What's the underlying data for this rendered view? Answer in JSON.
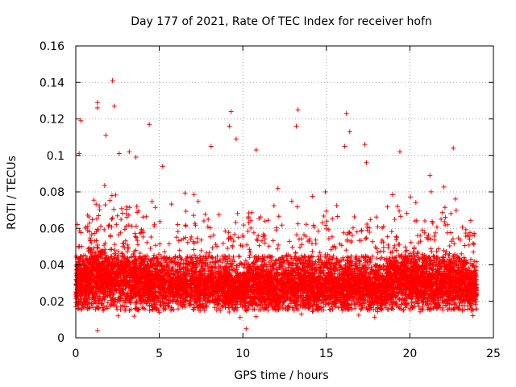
{
  "chart_data": {
    "type": "scatter",
    "title": "Day 177 of 2021, Rate Of TEC Index for receiver hofn",
    "xlabel": "GPS time / hours",
    "ylabel": "ROTI / TECUs",
    "xlim": [
      0,
      25
    ],
    "ylim": [
      0,
      0.16
    ],
    "x_ticks": [
      0,
      5,
      10,
      15,
      20,
      25
    ],
    "x_tick_labels": [
      "0",
      "5",
      "10",
      "15",
      "20",
      "25"
    ],
    "y_ticks": [
      0,
      0.02,
      0.04,
      0.06,
      0.08,
      0.1,
      0.12,
      0.14,
      0.16
    ],
    "y_tick_labels": [
      "0",
      "0.02",
      "0.04",
      "0.06",
      "0.08",
      "0.1",
      "0.12",
      "0.14",
      "0.16"
    ],
    "grid": true,
    "marker": "+",
    "color": "#ff0000",
    "data_extent_x": [
      0,
      24
    ],
    "typical_band": [
      0.015,
      0.045
    ],
    "notable_points": [
      {
        "x": 2.2,
        "y": 0.141
      },
      {
        "x": 1.3,
        "y": 0.129
      },
      {
        "x": 1.3,
        "y": 0.126
      },
      {
        "x": 2.3,
        "y": 0.127
      },
      {
        "x": 13.3,
        "y": 0.125
      },
      {
        "x": 9.3,
        "y": 0.124
      },
      {
        "x": 16.2,
        "y": 0.123
      },
      {
        "x": 0.3,
        "y": 0.119
      },
      {
        "x": 4.4,
        "y": 0.117
      },
      {
        "x": 9.2,
        "y": 0.116
      },
      {
        "x": 13.2,
        "y": 0.116
      },
      {
        "x": 16.4,
        "y": 0.113
      },
      {
        "x": 1.8,
        "y": 0.111
      },
      {
        "x": 17.3,
        "y": 0.106
      },
      {
        "x": 16.1,
        "y": 0.105
      },
      {
        "x": 9.6,
        "y": 0.109
      },
      {
        "x": 22.6,
        "y": 0.104
      },
      {
        "x": 8.1,
        "y": 0.105
      },
      {
        "x": 19.4,
        "y": 0.102
      },
      {
        "x": 0.2,
        "y": 0.101
      },
      {
        "x": 2.6,
        "y": 0.101
      },
      {
        "x": 10.8,
        "y": 0.103
      },
      {
        "x": 3.2,
        "y": 0.102
      },
      {
        "x": 17.4,
        "y": 0.096
      },
      {
        "x": 5.2,
        "y": 0.094
      },
      {
        "x": 3.6,
        "y": 0.099
      },
      {
        "x": 12.1,
        "y": 0.082
      },
      {
        "x": 21.2,
        "y": 0.089
      },
      {
        "x": 23.8,
        "y": 0.047
      },
      {
        "x": 10.2,
        "y": 0.005
      },
      {
        "x": 1.3,
        "y": 0.004
      }
    ],
    "clusters": [
      {
        "x_center": 0.4,
        "x_spread": 0.4,
        "y_mean": 0.03,
        "y_spread": 0.02,
        "count": 280
      },
      {
        "x_center": 1.3,
        "x_spread": 0.5,
        "y_mean": 0.036,
        "y_spread": 0.026,
        "count": 320
      },
      {
        "x_center": 2.4,
        "x_spread": 0.6,
        "y_mean": 0.034,
        "y_spread": 0.025,
        "count": 320
      },
      {
        "x_center": 3.6,
        "x_spread": 0.6,
        "y_mean": 0.033,
        "y_spread": 0.023,
        "count": 300
      },
      {
        "x_center": 4.8,
        "x_spread": 0.6,
        "y_mean": 0.03,
        "y_spread": 0.02,
        "count": 280
      },
      {
        "x_center": 6.1,
        "x_spread": 0.6,
        "y_mean": 0.029,
        "y_spread": 0.019,
        "count": 280
      },
      {
        "x_center": 7.4,
        "x_spread": 0.6,
        "y_mean": 0.03,
        "y_spread": 0.02,
        "count": 280
      },
      {
        "x_center": 8.6,
        "x_spread": 0.6,
        "y_mean": 0.029,
        "y_spread": 0.019,
        "count": 280
      },
      {
        "x_center": 9.7,
        "x_spread": 0.6,
        "y_mean": 0.027,
        "y_spread": 0.018,
        "count": 280
      },
      {
        "x_center": 10.9,
        "x_spread": 0.6,
        "y_mean": 0.03,
        "y_spread": 0.02,
        "count": 280
      },
      {
        "x_center": 12.1,
        "x_spread": 0.6,
        "y_mean": 0.028,
        "y_spread": 0.019,
        "count": 280
      },
      {
        "x_center": 13.3,
        "x_spread": 0.6,
        "y_mean": 0.03,
        "y_spread": 0.021,
        "count": 280
      },
      {
        "x_center": 14.5,
        "x_spread": 0.6,
        "y_mean": 0.029,
        "y_spread": 0.02,
        "count": 280
      },
      {
        "x_center": 15.7,
        "x_spread": 0.6,
        "y_mean": 0.028,
        "y_spread": 0.019,
        "count": 280
      },
      {
        "x_center": 16.8,
        "x_spread": 0.6,
        "y_mean": 0.03,
        "y_spread": 0.02,
        "count": 280
      },
      {
        "x_center": 18.0,
        "x_spread": 0.6,
        "y_mean": 0.026,
        "y_spread": 0.016,
        "count": 260
      },
      {
        "x_center": 19.2,
        "x_spread": 0.6,
        "y_mean": 0.033,
        "y_spread": 0.023,
        "count": 300
      },
      {
        "x_center": 20.4,
        "x_spread": 0.6,
        "y_mean": 0.032,
        "y_spread": 0.022,
        "count": 300
      },
      {
        "x_center": 21.6,
        "x_spread": 0.6,
        "y_mean": 0.031,
        "y_spread": 0.021,
        "count": 300
      },
      {
        "x_center": 22.8,
        "x_spread": 0.6,
        "y_mean": 0.031,
        "y_spread": 0.021,
        "count": 300
      },
      {
        "x_center": 23.7,
        "x_spread": 0.3,
        "y_mean": 0.028,
        "y_spread": 0.018,
        "count": 200
      }
    ]
  }
}
